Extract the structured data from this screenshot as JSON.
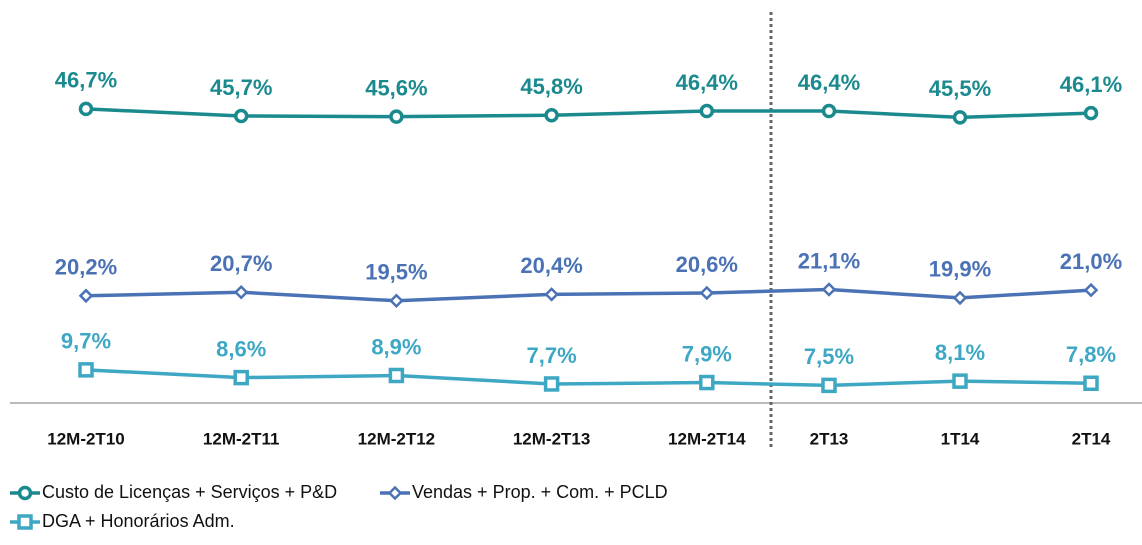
{
  "chart_data": {
    "type": "line",
    "categories": [
      "12M-2T10",
      "12M-2T11",
      "12M-2T12",
      "12M-2T13",
      "12M-2T14",
      "2T13",
      "1T14",
      "2T14"
    ],
    "ylim": [
      5,
      53
    ],
    "series": [
      {
        "name": "Custo de Licenças + Serviços + P&D",
        "color": "#1b8a8e",
        "marker": "circle",
        "values": [
          46.7,
          45.7,
          45.6,
          45.8,
          46.4,
          46.4,
          45.5,
          46.1
        ],
        "value_labels": [
          "46,7%",
          "45,7%",
          "45,6%",
          "45,8%",
          "46,4%",
          "46,4%",
          "45,5%",
          "46,1%"
        ]
      },
      {
        "name": "Vendas + Prop. + Com. + PCLD",
        "color": "#4a72b5",
        "marker": "diamond",
        "values": [
          20.2,
          20.7,
          19.5,
          20.4,
          20.6,
          21.1,
          19.9,
          21.0
        ],
        "value_labels": [
          "20,2%",
          "20,7%",
          "19,5%",
          "20,4%",
          "20,6%",
          "21,1%",
          "19,9%",
          "21,0%"
        ]
      },
      {
        "name": "DGA + Honorários Adm.",
        "color": "#3ea8c4",
        "marker": "square",
        "values": [
          9.7,
          8.6,
          8.9,
          7.7,
          7.9,
          7.5,
          8.1,
          7.8
        ],
        "value_labels": [
          "9,7%",
          "8,6%",
          "8,9%",
          "7,7%",
          "7,9%",
          "7,5%",
          "8,1%",
          "7,8%"
        ]
      }
    ]
  }
}
